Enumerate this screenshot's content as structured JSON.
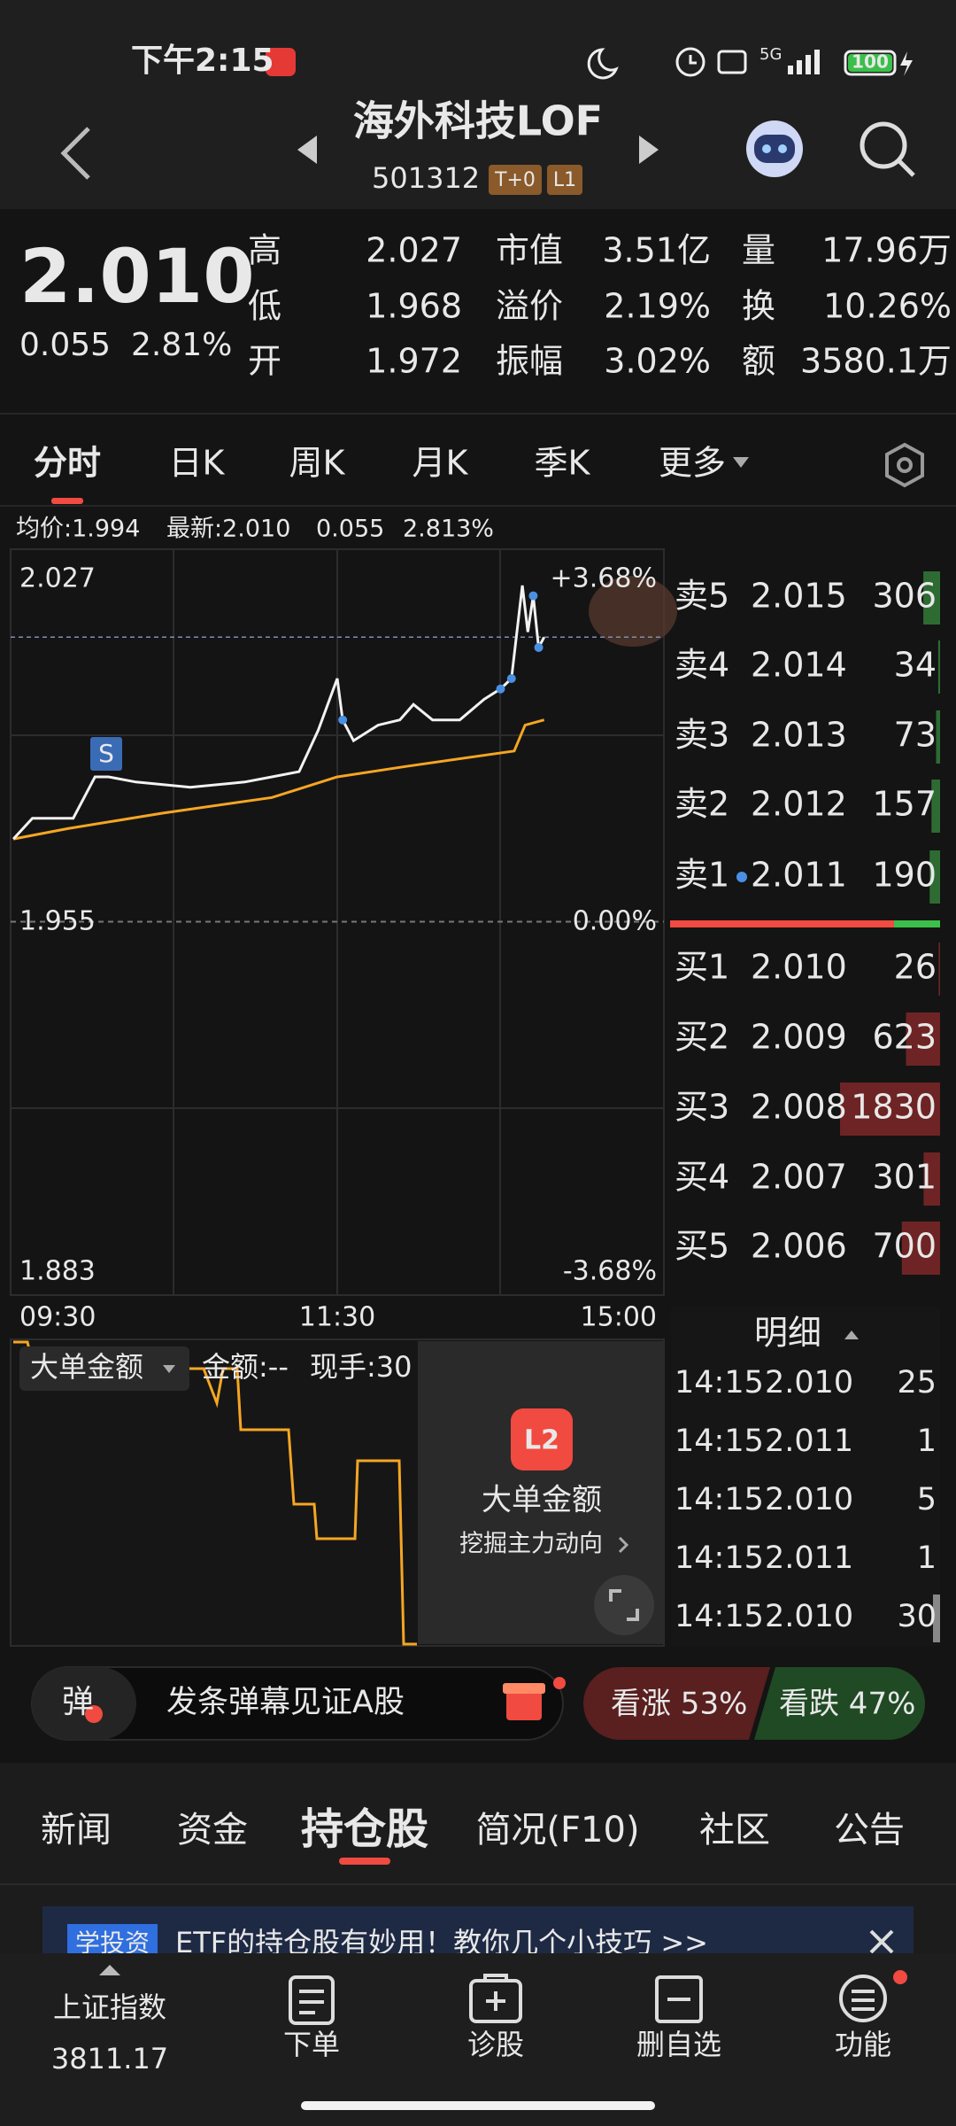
{
  "status_bar": {
    "time": "下午2:15",
    "network": "5G",
    "battery": "100"
  },
  "header": {
    "title": "海外科技LOF",
    "code": "501312",
    "badges": [
      "T+0",
      "L1"
    ]
  },
  "quote": {
    "price": "2.010",
    "change": "0.055",
    "change_pct": "2.81%",
    "stats": [
      {
        "label": "高",
        "value": "2.027",
        "color": "#f04a41"
      },
      {
        "label": "低",
        "value": "1.968",
        "color": "#f04a41"
      },
      {
        "label": "开",
        "value": "1.972",
        "color": "#f04a41"
      },
      {
        "label": "市值",
        "value": "3.51亿",
        "color": "#e8e8e8"
      },
      {
        "label": "溢价",
        "value": "2.19%",
        "color": "#f04a41"
      },
      {
        "label": "振幅",
        "value": "3.02%",
        "color": "#e8e8e8"
      },
      {
        "label": "量",
        "value": "17.96万",
        "color": "#e8e8e8"
      },
      {
        "label": "换",
        "value": "10.26%",
        "color": "#e8e8e8"
      },
      {
        "label": "额",
        "value": "3580.1万",
        "color": "#e8e8e8"
      }
    ]
  },
  "tabs": [
    "分时",
    "日K",
    "周K",
    "月K",
    "季K",
    "更多"
  ],
  "chart_info": {
    "avg": "均价:1.994",
    "latest": "最新:2.010",
    "change": "0.055",
    "change_pct": "2.813%"
  },
  "intraday_chart": {
    "type": "line",
    "y_labels": {
      "top": "2.027",
      "mid": "1.955",
      "bottom": "1.883"
    },
    "pct_labels": {
      "top": "+3.68%",
      "mid": "0.00%",
      "bottom": "-3.68%"
    },
    "x_labels": [
      "09:30",
      "11:30",
      "15:00"
    ],
    "signal": "S",
    "xlim": [
      0,
      240
    ],
    "ylim": [
      1.883,
      2.027
    ],
    "price": {
      "color": "#f2f2f2",
      "x": [
        1,
        8,
        23,
        31,
        36,
        46,
        66,
        86,
        96,
        106,
        113,
        120,
        122,
        126,
        135,
        143,
        148,
        155,
        165,
        174,
        180,
        184,
        188,
        190,
        192,
        194,
        196
      ],
      "values": [
        1.971,
        1.975,
        1.975,
        1.983,
        1.983,
        1.982,
        1.981,
        1.982,
        1.983,
        1.984,
        1.992,
        2.002,
        1.994,
        1.99,
        1.993,
        1.994,
        1.997,
        1.994,
        1.994,
        1.998,
        2.0,
        2.002,
        2.02,
        2.011,
        2.018,
        2.008,
        2.01
      ]
    },
    "average": {
      "color": "#f5a623",
      "x": [
        1,
        21,
        56,
        96,
        120,
        145,
        185,
        189,
        196
      ],
      "values": [
        1.971,
        1.973,
        1.976,
        1.979,
        1.983,
        1.985,
        1.988,
        1.993,
        1.994
      ]
    }
  },
  "order_book": {
    "asks": [
      {
        "label": "卖5",
        "price": "2.015",
        "volume": 306
      },
      {
        "label": "卖4",
        "price": "2.014",
        "volume": 34
      },
      {
        "label": "卖3",
        "price": "2.013",
        "volume": 73
      },
      {
        "label": "卖2",
        "price": "2.012",
        "volume": 157
      },
      {
        "label": "卖1",
        "price": "2.011",
        "volume": 190
      }
    ],
    "bids": [
      {
        "label": "买1",
        "price": "2.010",
        "volume": 26
      },
      {
        "label": "买2",
        "price": "2.009",
        "volume": 623
      },
      {
        "label": "买3",
        "price": "2.008",
        "volume": 1830
      },
      {
        "label": "买4",
        "price": "2.007",
        "volume": 301
      },
      {
        "label": "买5",
        "price": "2.006",
        "volume": 700
      }
    ]
  },
  "indicator": {
    "name": "大单金额",
    "amount": "金额:--",
    "lots": "现手:30",
    "badge": "L2",
    "promo_title": "大单金额",
    "promo_sub": "挖掘主力动向"
  },
  "trades": {
    "header": "明细",
    "rows": [
      [
        "14:15",
        "2.010",
        "25"
      ],
      [
        "14:15",
        "2.011",
        "1"
      ],
      [
        "14:15",
        "2.010",
        "5"
      ],
      [
        "14:15",
        "2.011",
        "1"
      ],
      [
        "14:15",
        "2.010",
        "30"
      ]
    ]
  },
  "comment_bar": {
    "button": "弹",
    "placeholder": "发条弹幕见证A股",
    "up": "看涨 53%",
    "down": "看跌 47%"
  },
  "section_tabs": [
    "新闻",
    "资金",
    "持仓股",
    "简况(F10)",
    "社区",
    "公告"
  ],
  "banner": {
    "tag": "学投资",
    "text": "ETF的持仓股有妙用！教你几个小技巧 >>"
  },
  "bottom_nav": {
    "index_name": "上证指数",
    "index_value": "3811.17",
    "items": [
      "下单",
      "诊股",
      "删自选",
      "功能"
    ]
  }
}
